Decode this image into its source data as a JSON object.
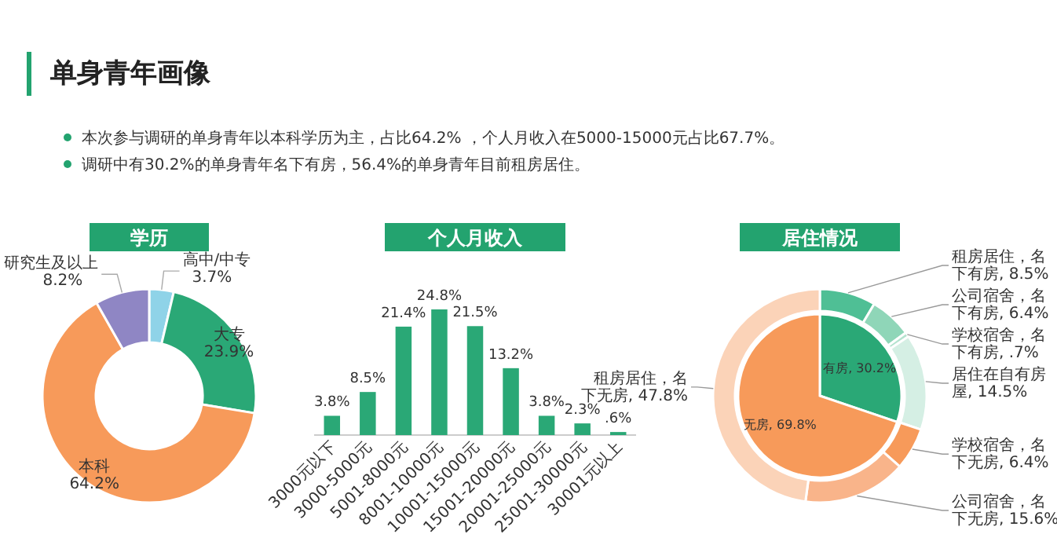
{
  "chart_data": [
    {
      "type": "other",
      "title": "单身青年画像",
      "annotations": [
        "本次参与调研的单身青年以本科学历为主，占比64.2% ，个人月收入在5000-15000元占比67.7%。",
        "调研中有30.2%的单身青年名下有房，56.4%的单身青年目前租房居住。"
      ]
    },
    {
      "type": "donut",
      "title": "学历",
      "categories": [
        "高中/中专",
        "大专",
        "本科",
        "研究生及以上"
      ],
      "values": [
        3.7,
        23.9,
        64.2,
        8.2
      ],
      "colors": [
        "#8fd3e8",
        "#2aa876",
        "#f79a5a",
        "#8f86c4"
      ],
      "value_labels": [
        "3.7%",
        "23.9%",
        "64.2%",
        "8.2%"
      ]
    },
    {
      "type": "bar",
      "title": "个人月收入",
      "categories": [
        "3000元以下",
        "3000-5000元",
        "5001-8000元",
        "8001-10000元",
        "10001-15000元",
        "15001-20000元",
        "20001-25000元",
        "25001-30000元",
        "30001元以上"
      ],
      "values": [
        3.8,
        8.5,
        21.4,
        24.8,
        21.5,
        13.2,
        3.8,
        2.3,
        0.6
      ],
      "color": "#2aa876",
      "value_labels": [
        "3.8%",
        "8.5%",
        "21.4%",
        "24.8%",
        "21.5%",
        "13.2%",
        "3.8%",
        "2.3%",
        ".6%"
      ]
    },
    {
      "type": "pie",
      "title": "居住情况",
      "series": [
        {
          "values": [
            30.2,
            69.8
          ],
          "colors": [
            "#2aa876",
            "#f79a5a"
          ],
          "value_labels": [
            "有房, 30.2%",
            "无房, 69.8%"
          ]
        },
        {
          "values": [
            8.5,
            6.4,
            0.7,
            14.5,
            6.4,
            15.6,
            47.8
          ],
          "colors": [
            "#4fbf95",
            "#8fd6b8",
            "#b5e3cf",
            "#d5efe4",
            "#f79a5a",
            "#f9b48a",
            "#fbd3b8"
          ],
          "value_labels": [
            "租房居住，名下有房, 8.5%",
            "公司宿舍，名下有房, 6.4%",
            "学校宿舍，名下有房, .7%",
            "居住在自有房屋, 14.5%",
            "学校宿舍，名下无房, 6.4%",
            "公司宿舍，名下无房, 15.6%",
            "租房居住，名下无房, 47.8%"
          ]
        }
      ]
    }
  ]
}
